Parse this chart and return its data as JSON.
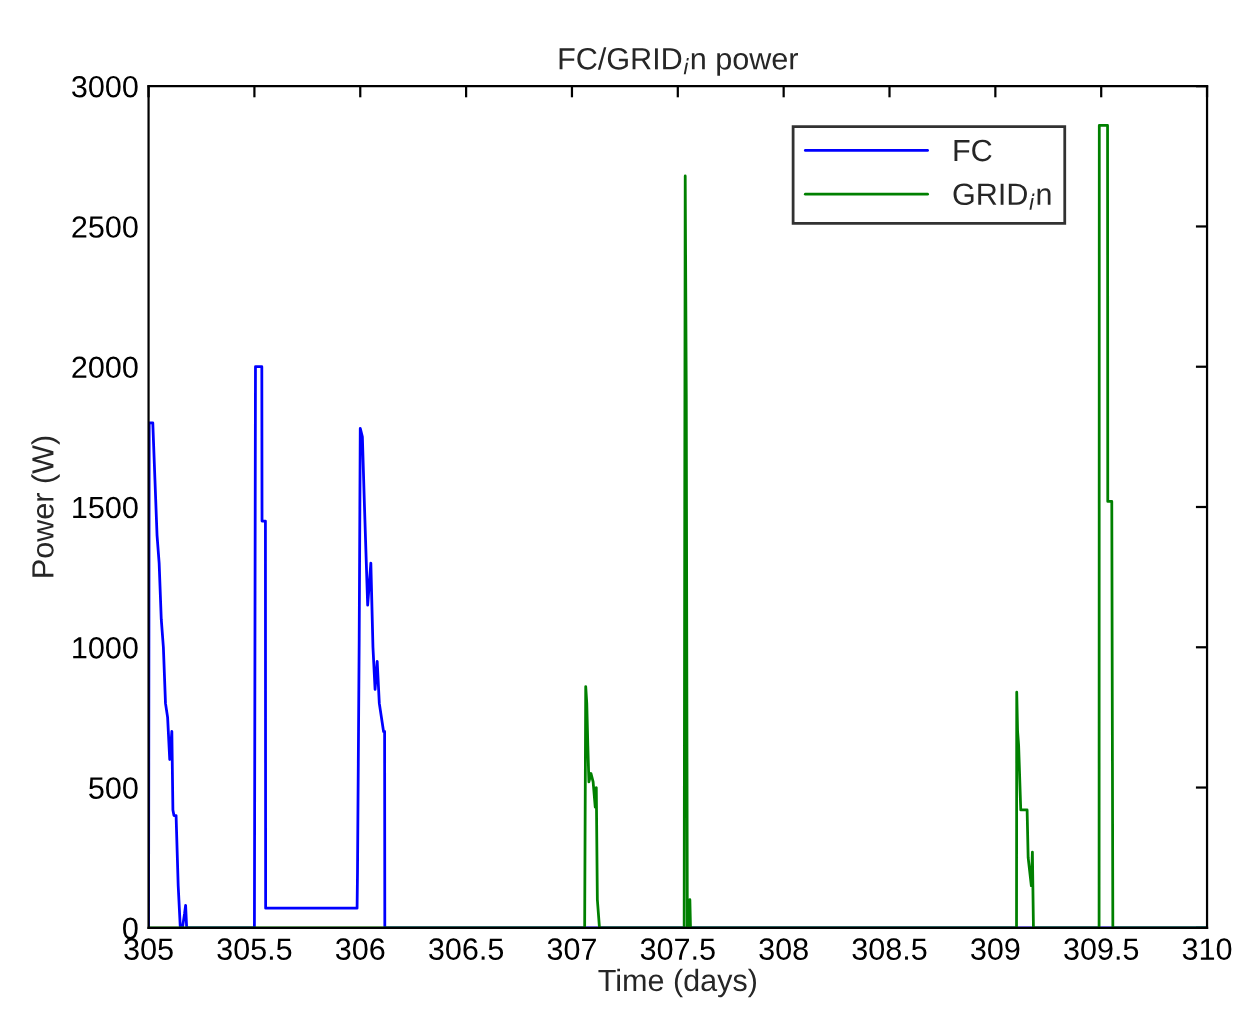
{
  "chart_data": {
    "type": "line",
    "title": "FC/GRID$_{i}$n power",
    "xlabel": "Time (days)",
    "ylabel": "Power (W)",
    "xlim": [
      305,
      310
    ],
    "xticks": [
      305,
      305.5,
      306,
      306.5,
      307,
      307.5,
      308,
      308.5,
      309,
      309.5,
      310
    ],
    "ylim": [
      0,
      3000
    ],
    "yticks": [
      0,
      500,
      1000,
      1500,
      2000,
      2500,
      3000
    ],
    "grid": false,
    "legend": "top right",
    "series": [
      {
        "name": "FC",
        "color": "#0000ff",
        "x": [
          305,
          305.003,
          305.02,
          305.03,
          305.04,
          305.05,
          305.06,
          305.07,
          305.08,
          305.09,
          305.1,
          305.11,
          305.115,
          305.12,
          305.13,
          305.14,
          305.15,
          305.16,
          305.17,
          305.175,
          305.18,
          305.5,
          305.505,
          305.535,
          305.536,
          305.552,
          305.553,
          305.985,
          305.987,
          305.995,
          306.0,
          306.01,
          306.02,
          306.035,
          306.05,
          306.06,
          306.07,
          306.08,
          306.09,
          306.1,
          306.11,
          306.115,
          306.116,
          310
        ],
        "values": [
          0,
          1800,
          1800,
          1600,
          1400,
          1300,
          1100,
          1000,
          800,
          750,
          600,
          700,
          420,
          400,
          400,
          150,
          0,
          0,
          50,
          80,
          0,
          0,
          2000,
          2000,
          1450,
          1450,
          70,
          70,
          200,
          1030,
          1780,
          1750,
          1500,
          1150,
          1300,
          1000,
          850,
          950,
          800,
          750,
          700,
          700,
          0,
          0
        ]
      },
      {
        "name": "GRID$_{i}$n",
        "color": "#008000",
        "x": [
          305,
          307.06,
          307.065,
          307.07,
          307.075,
          307.08,
          307.09,
          307.1,
          307.11,
          307.115,
          307.12,
          307.13,
          307.53,
          307.535,
          307.54,
          307.545,
          307.55,
          307.557,
          307.56,
          309.1,
          309.101,
          309.105,
          309.11,
          309.12,
          309.15,
          309.155,
          309.17,
          309.175,
          309.18,
          309.49,
          309.491,
          309.53,
          309.531,
          309.55,
          309.555,
          310
        ],
        "values": [
          0,
          0,
          860,
          800,
          650,
          520,
          550,
          520,
          430,
          500,
          100,
          0,
          0,
          2680,
          1900,
          0,
          0,
          100,
          0,
          0,
          840,
          700,
          650,
          420,
          420,
          250,
          150,
          270,
          0,
          0,
          2860,
          2860,
          1520,
          1520,
          0,
          0
        ]
      }
    ]
  }
}
